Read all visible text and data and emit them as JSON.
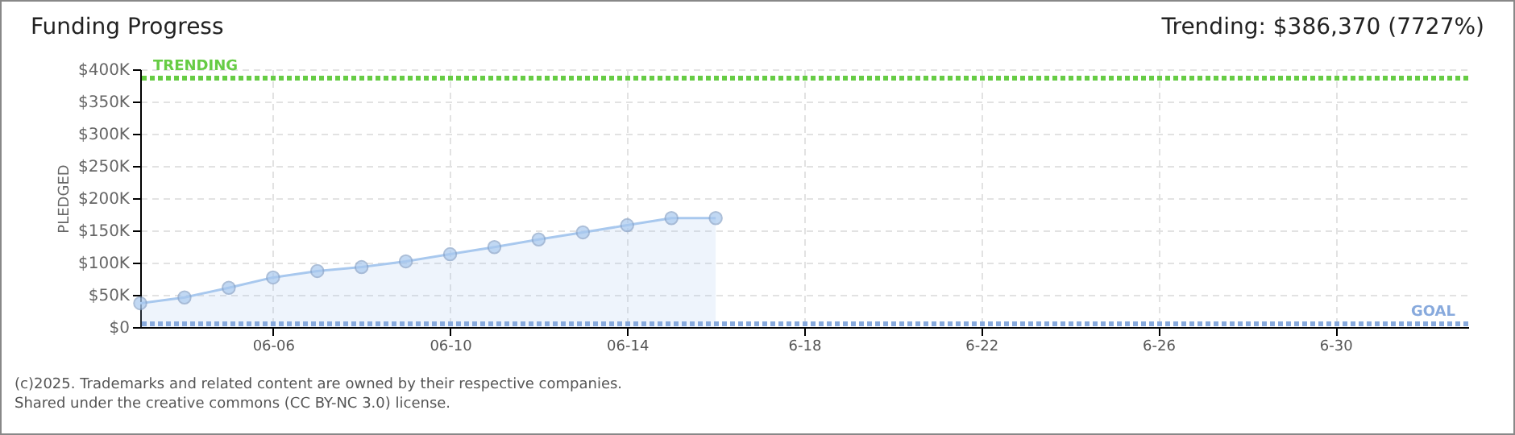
{
  "chart_data": {
    "type": "area",
    "title": "Funding Progress",
    "ylabel": "PLEDGED",
    "annotations": [
      "Trending: $386,370 (7727%)",
      "(c)2025. Trademarks and related content are owned by their respective companies.",
      "Shared under the creative commons (CC BY-NC 3.0) license."
    ],
    "x": [
      "--06-03",
      "--06-04",
      "--06-05",
      "--06-06",
      "--06-07",
      "--06-08",
      "--06-09",
      "--06-10",
      "--06-11",
      "--06-12",
      "--06-13",
      "--06-14",
      "--06-15",
      "--06-16"
    ],
    "series": [
      {
        "color": "#a8c8ee",
        "values": [
          37000,
          46000,
          61000,
          77000,
          87000,
          93000,
          102000,
          113000,
          124000,
          136000,
          147000,
          158000,
          169000,
          169000
        ]
      }
    ],
    "xlim": [
      "--06-03",
      "--07-03"
    ],
    "xticks": [
      {
        "value": "--06-06",
        "label": "06-06"
      },
      {
        "value": "--06-10",
        "label": "06-10"
      },
      {
        "value": "--06-14",
        "label": "06-14"
      },
      {
        "value": "--06-18",
        "label": "6-18"
      },
      {
        "value": "--06-22",
        "label": "6-22"
      },
      {
        "value": "--06-26",
        "label": "6-26"
      },
      {
        "value": "--06-30",
        "label": "6-30"
      }
    ],
    "ylim": [
      0,
      400000
    ],
    "yticks": [
      {
        "value": 0,
        "label": "$0"
      },
      {
        "value": 50000,
        "label": "$50K"
      },
      {
        "value": 100000,
        "label": "$100K"
      },
      {
        "value": 150000,
        "label": "$150K"
      },
      {
        "value": 200000,
        "label": "$200K"
      },
      {
        "value": 250000,
        "label": "$250K"
      },
      {
        "value": 300000,
        "label": "$300K"
      },
      {
        "value": 350000,
        "label": "$350K"
      },
      {
        "value": 400000,
        "label": "$400K"
      }
    ],
    "ref_lines": [
      {
        "axis": "y",
        "value": 386370,
        "label": "TRENDING",
        "color": "#66cc44",
        "line_style": "dotted"
      },
      {
        "axis": "y",
        "value": 5000,
        "label": "GOAL",
        "color": "#88aadd",
        "line_style": "dotted"
      }
    ],
    "grid": true,
    "marker": "circle"
  }
}
